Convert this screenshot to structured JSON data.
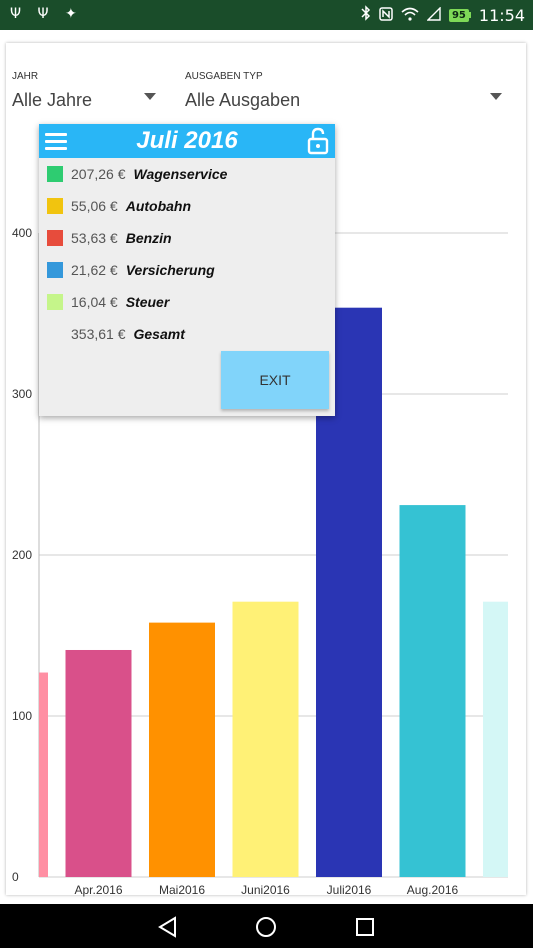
{
  "status_bar": {
    "left_icons": "Ψ Ψ ✦",
    "battery": "95",
    "time": "11:54"
  },
  "filters": {
    "year": {
      "label": "JAHR",
      "value": "Alle Jahre"
    },
    "type": {
      "label": "AUSGABEN TYP",
      "value": "Alle Ausgaben"
    }
  },
  "popup": {
    "title": "Juli 2016",
    "rows": [
      {
        "amount": "207,26 €",
        "name": "Wagenservice",
        "color": "#2ecc71"
      },
      {
        "amount": "55,06 €",
        "name": "Autobahn",
        "color": "#f1c40f"
      },
      {
        "amount": "53,63 €",
        "name": "Benzin",
        "color": "#e74c3c"
      },
      {
        "amount": "21,62 €",
        "name": "Versicherung",
        "color": "#3498db"
      },
      {
        "amount": "16,04 €",
        "name": "Steuer",
        "color": "#c5f58a"
      },
      {
        "amount": "353,61 €",
        "name": "Gesamt",
        "color": ""
      }
    ],
    "exit_label": "EXIT"
  },
  "chart_data": {
    "type": "bar",
    "ylim": [
      0,
      400
    ],
    "yticks": [
      0,
      100,
      200,
      300,
      400
    ],
    "grid": true,
    "bars": [
      {
        "label": "",
        "value": 127,
        "color": "#ff8fa3"
      },
      {
        "label": "Apr.2016",
        "value": 141,
        "color": "#d9508a"
      },
      {
        "label": "Mai2016",
        "value": 158,
        "color": "#ff9100"
      },
      {
        "label": "Juni2016",
        "value": 171,
        "color": "#fff176"
      },
      {
        "label": "Juli2016",
        "value": 353.61,
        "color": "#2a35b4"
      },
      {
        "label": "Aug.2016",
        "value": 231,
        "color": "#35c2d3"
      },
      {
        "label": "",
        "value": 171,
        "color": "#d4f7f6"
      }
    ]
  }
}
